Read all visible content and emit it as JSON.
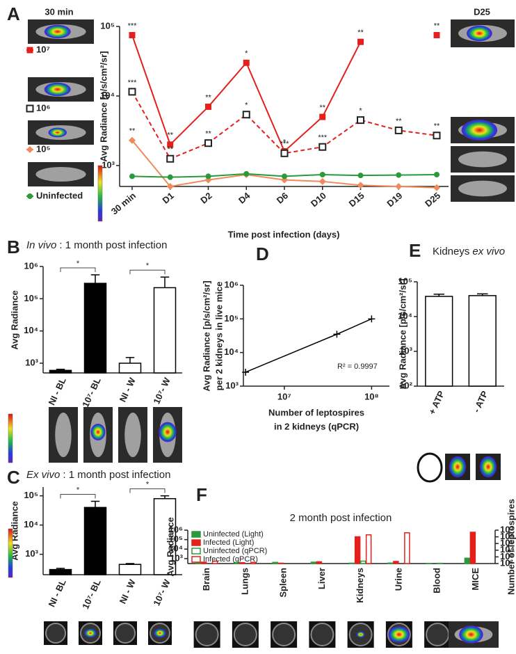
{
  "chart_data": [
    {
      "label": "A",
      "type": "line",
      "log_y": true,
      "ylabel": "Avg Radiance [p/s/cm²/sr]",
      "xlabel": "Time post infection (days)",
      "image_labels": [
        "30 min",
        "D25"
      ],
      "categories": [
        "30 min",
        "D1",
        "D2",
        "D4",
        "D6",
        "D10",
        "D15",
        "D19",
        "D25"
      ],
      "ylim": [
        500,
        100000
      ],
      "yticks": [
        {
          "value": 1000,
          "label": "10³"
        },
        {
          "value": 10000,
          "label": "10⁴"
        },
        {
          "value": 100000,
          "label": "10⁵"
        }
      ],
      "series": [
        {
          "name": "10⁷",
          "color": "#e3201b",
          "marker": "square",
          "marker_color": "#e3201b",
          "dashed": false,
          "values": [
            75000,
            2000,
            7000,
            30000,
            1600,
            5000,
            60000,
            null,
            75000
          ],
          "significance": [
            "***",
            "**",
            "**",
            "*",
            "*",
            "**",
            "**",
            null,
            "**"
          ]
        },
        {
          "name": "10⁶",
          "color": "#e3201b",
          "marker": "open-square",
          "marker_color": "#222222",
          "dashed": true,
          "values": [
            11500,
            1250,
            2100,
            5400,
            1500,
            1850,
            4500,
            3200,
            2700
          ],
          "significance": [
            "***",
            "**",
            "**",
            "*",
            "***",
            "***",
            "*",
            "**",
            "**"
          ]
        },
        {
          "name": "10⁵",
          "color": "#f08a5d",
          "marker": "diamond",
          "marker_color": "#f08a5d",
          "dashed": false,
          "values": [
            2300,
            500,
            620,
            740,
            620,
            590,
            520,
            500,
            480
          ],
          "significance": [
            "**",
            null,
            null,
            null,
            null,
            null,
            null,
            null,
            null
          ]
        },
        {
          "name": "Uninfected",
          "color": "#2a9a3a",
          "marker": "circle",
          "marker_color": "#2a9a3a",
          "dashed": false,
          "values": [
            700,
            680,
            700,
            760,
            700,
            740,
            720,
            730,
            740
          ]
        }
      ]
    },
    {
      "label": "B",
      "type": "bar",
      "log_y": true,
      "title": [
        {
          "text": "In vivo",
          "italic": true
        },
        {
          "text": ": 1 month post infection"
        }
      ],
      "ylabel": "Avg Radiance",
      "categories": [
        "NI - BL",
        "10⁷- BL",
        "NI - W",
        "10⁷- W"
      ],
      "values": [
        600,
        300000,
        1000,
        220000
      ],
      "errors": [
        50,
        250000,
        500,
        250000
      ],
      "colors": [
        "#000000",
        "#000000",
        "#ffffff",
        "#ffffff"
      ],
      "ylim": [
        500,
        1000000
      ],
      "yticks": [
        {
          "value": 1000,
          "label": "10³"
        },
        {
          "value": 10000,
          "label": "10⁴"
        },
        {
          "value": 100000,
          "label": "10⁵"
        },
        {
          "value": 1000000,
          "label": "10⁶"
        }
      ],
      "brackets": [
        {
          "from": "NI - BL",
          "to": "10⁷- BL",
          "text": "*"
        },
        {
          "from": "NI - W",
          "to": "10⁷- W",
          "text": "*"
        }
      ]
    },
    {
      "label": "C",
      "type": "bar",
      "log_y": true,
      "title": [
        {
          "text": "Ex vivo",
          "italic": true
        },
        {
          "text": ": 1 month post infection"
        }
      ],
      "ylabel": "Avg Radiance",
      "categories": [
        "NI - BL",
        "10⁷- BL",
        "NI - W",
        "10⁷- W"
      ],
      "values": [
        300,
        40000,
        450,
        80000
      ],
      "errors": [
        30,
        25000,
        30,
        20000
      ],
      "colors": [
        "#000000",
        "#000000",
        "#ffffff",
        "#ffffff"
      ],
      "ylim": [
        200,
        200000
      ],
      "yticks": [
        {
          "value": 1000,
          "label": "10³"
        },
        {
          "value": 10000,
          "label": "10⁴"
        },
        {
          "value": 100000,
          "label": "10⁵"
        }
      ],
      "brackets": [
        {
          "from": "NI - BL",
          "to": "10⁷- BL",
          "text": "*"
        },
        {
          "from": "NI - W",
          "to": "10⁷- W",
          "text": "*"
        }
      ]
    },
    {
      "label": "D",
      "type": "scatter",
      "log_x": true,
      "log_y": true,
      "color": "#000000",
      "ylabel": [
        "Avg Radiance [p/s/cm²/sr]",
        "per 2 kidneys in live mice"
      ],
      "xlabel": [
        "Number of leptospires",
        "in 2 kidneys (qPCR)"
      ],
      "annotation": "R² = 0.9997",
      "x": [
        3600000,
        40000000,
        100000000
      ],
      "values": [
        2600,
        35000,
        100000
      ],
      "xlim": [
        3400000,
        160000000
      ],
      "xticks": [
        {
          "value": 10000000,
          "label": "10⁷"
        },
        {
          "value": 100000000,
          "label": "10⁸"
        }
      ],
      "ylim": [
        1000,
        1000000
      ],
      "yticks": [
        {
          "value": 1000,
          "label": "10³"
        },
        {
          "value": 10000,
          "label": "10⁴"
        },
        {
          "value": 100000,
          "label": "10⁵"
        },
        {
          "value": 1000000,
          "label": "10⁶"
        }
      ]
    },
    {
      "label": "E",
      "type": "bar",
      "log_y": true,
      "title": [
        {
          "text": "Kidneys"
        },
        {
          "text": "ex vivo",
          "italic": true
        }
      ],
      "ylabel": "Avg Radiance [p/s/cm²/sr]",
      "categories": [
        "+ ATP",
        "- ATP"
      ],
      "values": [
        38000,
        40000
      ],
      "errors": [
        6000,
        5000
      ],
      "colors": [
        "#ffffff",
        "#ffffff"
      ],
      "ylim": [
        100,
        100000
      ],
      "yticks": [
        {
          "value": 100,
          "label": "10²"
        },
        {
          "value": 1000,
          "label": "10³"
        },
        {
          "value": 10000,
          "label": "10⁴"
        },
        {
          "value": 100000,
          "label": "10⁵"
        }
      ]
    },
    {
      "label": "F",
      "type": "grouped_bar",
      "log_y": true,
      "title": "2 month post infection",
      "ylabel": "Avg Radiance",
      "y2label": "Number of leptospires",
      "categories": [
        "Brain",
        "Lungs",
        "Spleen",
        "Liver",
        "Kidneys",
        "Urine",
        "Blood",
        "MICE"
      ],
      "ylim": [
        300,
        1000000
      ],
      "yticks": [
        {
          "value": 1000,
          "label": "10³"
        },
        {
          "value": 10000,
          "label": "10⁴"
        },
        {
          "value": 100000,
          "label": "10⁵"
        },
        {
          "value": 1000000,
          "label": "10⁶"
        }
      ],
      "y2lim": [
        100,
        10000000
      ],
      "y2ticks": [
        {
          "value": 100,
          "label": "10²"
        },
        {
          "value": 1000,
          "label": "10³"
        },
        {
          "value": 10000,
          "label": "10⁴"
        },
        {
          "value": 100000,
          "label": "10⁵"
        },
        {
          "value": 1000000,
          "label": "10⁶"
        },
        {
          "value": 10000000,
          "label": "10⁷"
        }
      ],
      "series": [
        {
          "name": "Uninfected (Light)",
          "color": "#2a9a3a",
          "filled": true,
          "values": [
            380,
            390,
            400,
            420,
            330,
            340,
            310,
            1100
          ]
        },
        {
          "name": "Infected (Light)",
          "color": "#e3201b",
          "filled": true,
          "values": [
            420,
            370,
            330,
            460,
            200000,
            500,
            null,
            600000
          ]
        },
        {
          "name": "Uninfected (qPCR)",
          "color": "#2a9a3a",
          "filled": false,
          "axis": "y2",
          "values": [
            null,
            null,
            null,
            null,
            230,
            null,
            110,
            null
          ]
        },
        {
          "name": "Infected (qPCR)",
          "color": "#e3201b",
          "filled": false,
          "axis": "y2",
          "values": [
            230,
            150,
            null,
            null,
            2000000,
            4000000,
            null,
            null
          ]
        }
      ]
    }
  ]
}
